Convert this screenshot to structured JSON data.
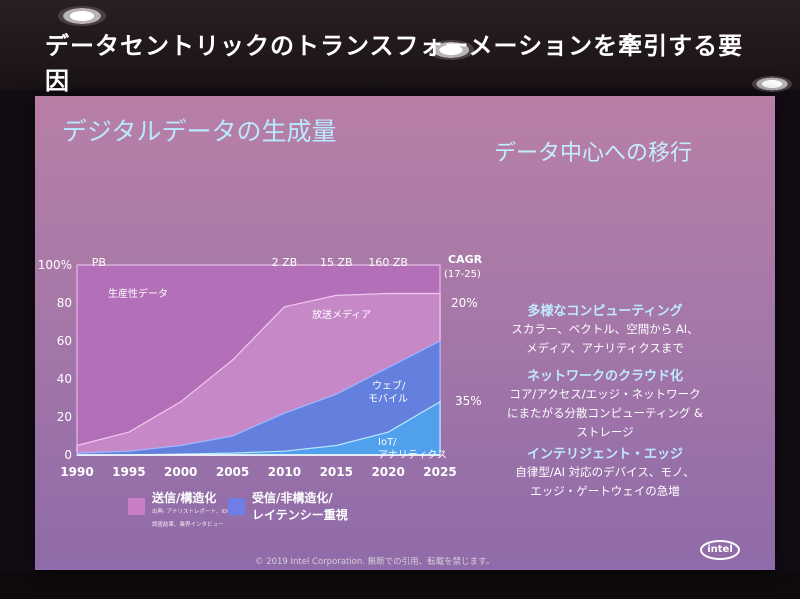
{
  "slide": {
    "title": "データセントリックのトランスフォーメーションを牽引する要因",
    "footer": "© 2019 Intel Corporation. 無断での引用、転載を禁じます。",
    "logo": "intel"
  },
  "right_panel": {
    "heading": "データ中心への移行",
    "sections": [
      {
        "heading": "多様なコンピューティング",
        "body": [
          "スカラー、ベクトル、空間から AI、",
          "メディア、アナリティクスまで"
        ]
      },
      {
        "heading": "ネットワークのクラウド化",
        "body": [
          "コア/アクセス/エッジ・ネットワーク",
          "にまたがる分散コンピューティング &",
          "ストレージ"
        ]
      },
      {
        "heading": "インテリジェント・エッジ",
        "body": [
          "自律型/AI 対応のデバイス、モノ、",
          "エッジ・ゲートウェイの急増"
        ]
      }
    ]
  },
  "legend": [
    {
      "name": "送信/構造化",
      "note": "出典: アナリストレポート、IDC",
      "note2": "調査結果、業界インタビュー",
      "color": "#c77ec6"
    },
    {
      "name": "受信/非構造化/",
      "name2": "レイテンシー重視",
      "color": "#6d7fe6"
    }
  ],
  "chart_data": {
    "type": "area",
    "title": "デジタルデータの生成量",
    "x": [
      1990,
      1995,
      2000,
      2005,
      2010,
      2015,
      2020,
      2025
    ],
    "xlim": [
      1990,
      2025
    ],
    "ylim": [
      0,
      100
    ],
    "y_ticks": [
      "0",
      "20",
      "40",
      "60",
      "80",
      "100%"
    ],
    "grid": false,
    "top_annotations": [
      {
        "label": "PB",
        "x": 1995
      },
      {
        "label": "2 ZB",
        "x": 2010
      },
      {
        "label": "15 ZB",
        "x": 2015
      },
      {
        "label": "160 ZB",
        "x": 2020
      }
    ],
    "cagr_header": "CAGR",
    "cagr_header2": "(17-25)",
    "cagr_values": [
      "20%",
      "35%"
    ],
    "series": [
      {
        "name": "生産性データ",
        "group": "送信/構造化",
        "values": [
          100,
          100,
          100,
          100,
          100,
          100,
          100,
          100
        ]
      },
      {
        "name": "放送メディア",
        "group": "送信/構造化",
        "values": [
          5,
          12,
          28,
          50,
          78,
          84,
          85,
          85
        ]
      },
      {
        "name": "ウェブ/モバイル",
        "group": "受信/非構造化/レイテンシー重視",
        "values": [
          1,
          2,
          5,
          10,
          22,
          32,
          46,
          60
        ]
      },
      {
        "name": "IoT/アナリティクス",
        "group": "受信/非構造化/レイテンシー重視",
        "values": [
          0,
          0,
          0.5,
          1,
          2,
          5,
          12,
          28
        ]
      }
    ],
    "series_labels": {
      "productivity": "生産性データ",
      "broadcast": "放送メディア",
      "web1": "ウェブ/",
      "web2": "モバイル",
      "iot1": "IoT/",
      "iot2": "アナリティクス"
    }
  }
}
